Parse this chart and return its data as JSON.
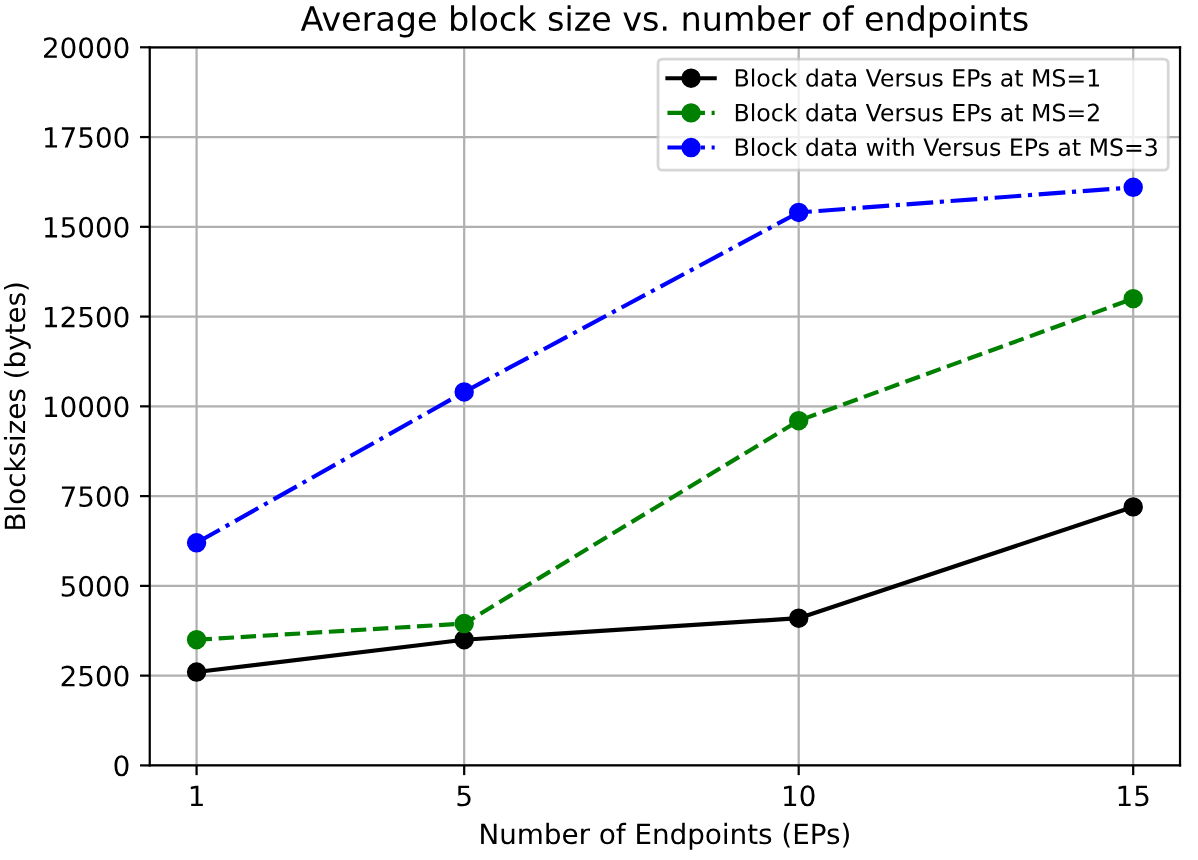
{
  "chart_data": {
    "type": "line",
    "title": "Average block size vs. number of endpoints",
    "xlabel": "Number of Endpoints (EPs)",
    "ylabel": "Blocksizes (bytes)",
    "x": [
      1,
      5,
      10,
      15
    ],
    "xlim": [
      0.3,
      15.7
    ],
    "xticks": [
      1,
      5,
      10,
      15
    ],
    "ylim": [
      0,
      20000
    ],
    "yticks": [
      0,
      2500,
      5000,
      7500,
      10000,
      12500,
      15000,
      17500,
      20000
    ],
    "grid": true,
    "legend": "top right",
    "marker": "circle",
    "series": [
      {
        "name": "Block data Versus EPs at MS=1",
        "color": "#000000",
        "line_style": "solid",
        "values": [
          2600,
          3500,
          4100,
          7200
        ]
      },
      {
        "name": "Block data Versus EPs at MS=2",
        "color": "#008000",
        "line_style": "dashed",
        "values": [
          3500,
          3950,
          9600,
          13000
        ]
      },
      {
        "name": "Block data with Versus EPs at MS=3",
        "color": "#0000ff",
        "line_style": "dashdot",
        "values": [
          6200,
          10400,
          15400,
          16100
        ]
      }
    ]
  }
}
